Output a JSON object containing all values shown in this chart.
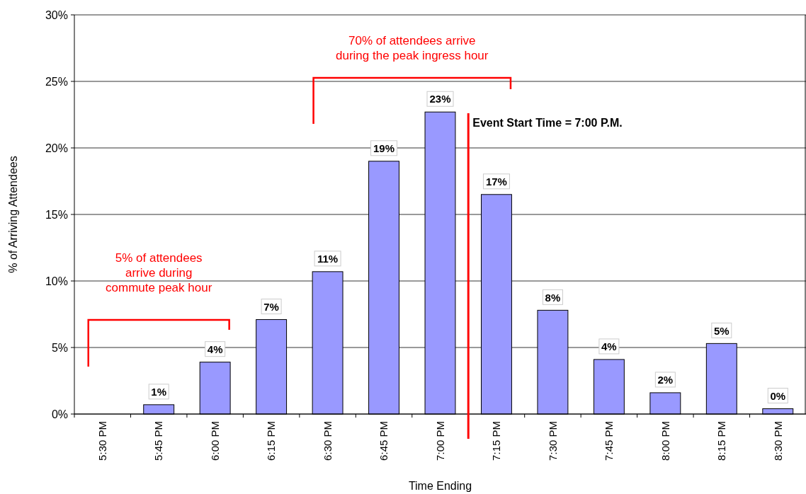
{
  "chart_data": {
    "type": "bar",
    "xlabel": "Time Ending",
    "ylabel": "% of Arriving Attendees",
    "categories": [
      "5:30 PM",
      "5:45 PM",
      "6:00 PM",
      "6:15 PM",
      "6:30 PM",
      "6:45 PM",
      "7:00 PM",
      "7:15 PM",
      "7:30 PM",
      "7:45 PM",
      "8:00 PM",
      "8:15 PM",
      "8:30 PM"
    ],
    "values": [
      0,
      0.7,
      3.9,
      7.1,
      10.7,
      19.0,
      22.7,
      16.5,
      7.8,
      4.1,
      1.6,
      5.3,
      0.4
    ],
    "value_labels": [
      null,
      "1%",
      "4%",
      "7%",
      "11%",
      "19%",
      "23%",
      "17%",
      "8%",
      "4%",
      "2%",
      "5%",
      "0%"
    ],
    "color": "#9999ff",
    "ylim": [
      0,
      30
    ],
    "yticks": [
      {
        "value": 0,
        "label": "0%"
      },
      {
        "value": 5,
        "label": "5%"
      },
      {
        "value": 10,
        "label": "10%"
      },
      {
        "value": 15,
        "label": "15%"
      },
      {
        "value": 20,
        "label": "20%"
      },
      {
        "value": 25,
        "label": "25%"
      },
      {
        "value": 30,
        "label": "30%"
      }
    ],
    "grid": "y",
    "ref_lines": [
      {
        "axis": "x",
        "value": "7:00 PM",
        "label": "Event Start Time = 7:00 P.M.",
        "color": "#ff0000"
      }
    ],
    "annotations": [
      "5% of attendees\narrive during\ncommute peak hour",
      "70% of attendees arrive\nduring the peak ingress hour"
    ]
  }
}
